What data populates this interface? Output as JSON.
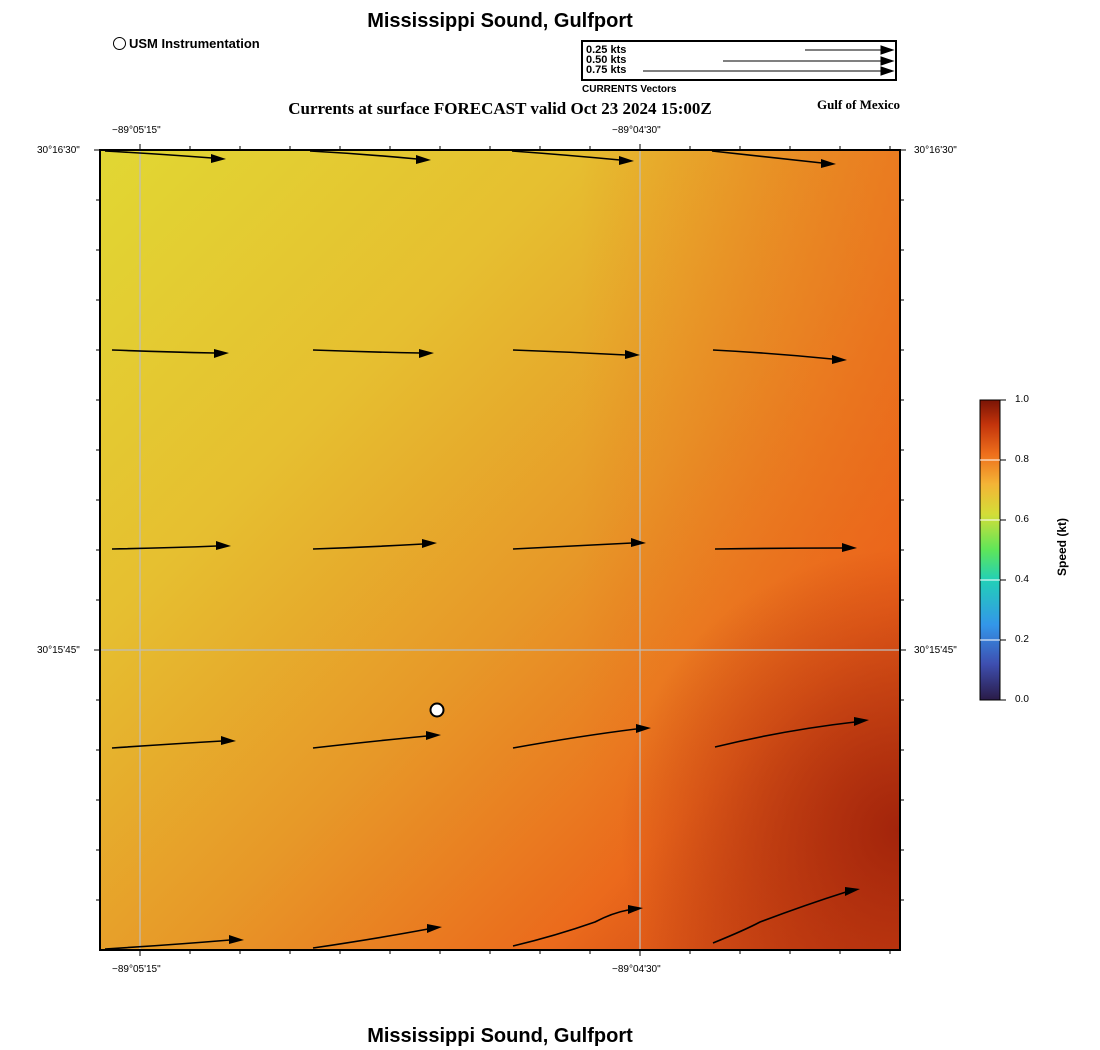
{
  "title": "Mississippi Sound, Gulfport",
  "footer_title": "Mississippi Sound, Gulfport",
  "subtitle": "Currents at surface FORECAST valid Oct 23 2024 15:00Z",
  "region_label": "Gulf of Mexico",
  "station_legend": {
    "label": "USM Instrumentation",
    "icon": "circle-icon"
  },
  "vector_legend": {
    "caption": "CURRENTS Vectors",
    "entries": [
      {
        "label": "0.25 kts",
        "speed_kt": 0.25
      },
      {
        "label": "0.50 kts",
        "speed_kt": 0.5
      },
      {
        "label": "0.75 kts",
        "speed_kt": 0.75
      }
    ]
  },
  "axes": {
    "top_lon_labels": [
      "−89°05'15\"",
      "−89°04'30\""
    ],
    "bottom_lon_labels": [
      "−89°05'15\"",
      "−89°04'30\""
    ],
    "left_lat_labels": [
      "30°16'30\"",
      "30°15'45\""
    ],
    "right_lat_labels": [
      "30°16'30\"",
      "30°15'45\""
    ]
  },
  "colorbar": {
    "title": "Speed (kt)",
    "ticks": [
      "0.0",
      "0.2",
      "0.4",
      "0.6",
      "0.8",
      "1.0"
    ],
    "range": [
      0,
      1
    ]
  },
  "colors": {
    "frame": "#000000",
    "grid": "#bbbbbb",
    "vector": "#000000"
  }
}
